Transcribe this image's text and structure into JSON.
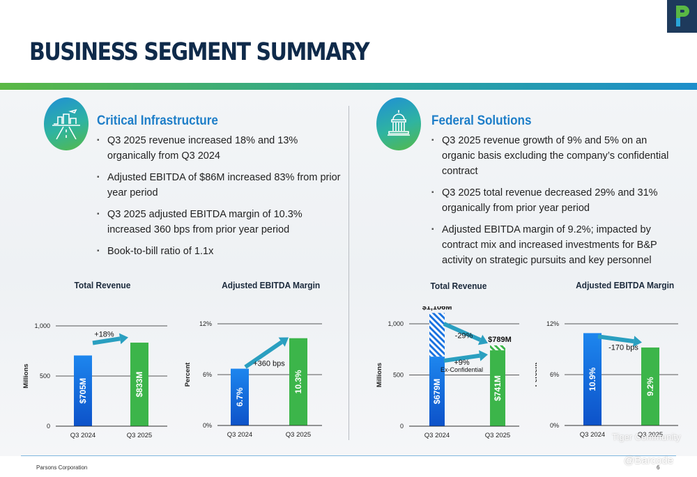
{
  "page": {
    "title": "BUSINESS SEGMENT SUMMARY",
    "footer": "Parsons Corporation",
    "page_number": "6"
  },
  "watermark": {
    "community": "Tiger Community",
    "handle": "@Barcode"
  },
  "segments": [
    {
      "title": "Critical Infrastructure",
      "icon": "city-infrastructure-icon",
      "bullets": [
        "Q3 2025 revenue increased 18% and 13% organically from Q3 2024",
        "Adjusted EBITDA of $86M increased 83% from prior year period",
        "Q3 2025 adjusted EBITDA margin of 10.3% increased 360 bps from prior year period",
        "Book-to-bill ratio of 1.1x"
      ]
    },
    {
      "title": "Federal Solutions",
      "icon": "capitol-building-icon",
      "bullets": [
        "Q3 2025 revenue growth of 9% and 5% on an organic basis excluding the company’s confidential contract",
        "Q3 2025 total revenue decreased 29% and 31% organically from prior year period",
        "Adjusted EBITDA margin of 9.2%; impacted by contract mix and increased investments for B&P activity on strategic pursuits and key personnel"
      ]
    }
  ],
  "chart_data": [
    {
      "id": "ci-revenue",
      "type": "bar",
      "title": "Total Revenue",
      "ylabel": "Millions",
      "categories": [
        "Q3 2024",
        "Q3 2025"
      ],
      "values": [
        705,
        833
      ],
      "bar_labels": [
        "$705M",
        "$833M"
      ],
      "ylim": [
        0,
        1000
      ],
      "yticks": [
        0,
        500,
        1000
      ],
      "ytick_labels": [
        "0",
        "500",
        "1,000"
      ],
      "annotation": "+18%",
      "colors": [
        "#1a73e0",
        "#3cb54a"
      ]
    },
    {
      "id": "ci-margin",
      "type": "bar",
      "title": "Adjusted EBITDA Margin",
      "ylabel": "Percent",
      "categories": [
        "Q3 2024",
        "Q3 2025"
      ],
      "values": [
        6.7,
        10.3
      ],
      "bar_labels": [
        "6.7%",
        "10.3%"
      ],
      "ylim": [
        0,
        12
      ],
      "yticks": [
        0,
        6,
        12
      ],
      "ytick_labels": [
        "0%",
        "6%",
        "12%"
      ],
      "annotation": "+360 bps",
      "colors": [
        "#1a73e0",
        "#3cb54a"
      ]
    },
    {
      "id": "fs-revenue",
      "type": "bar",
      "title": "Total Revenue",
      "ylabel": "Millions",
      "categories": [
        "Q3 2024",
        "Q3 2025"
      ],
      "values": [
        679,
        741
      ],
      "stacked_top": [
        1106,
        789
      ],
      "top_labels": [
        "$1,106M",
        "$789M"
      ],
      "bar_labels": [
        "$679M",
        "$741M"
      ],
      "ylim": [
        0,
        1000
      ],
      "yticks": [
        0,
        500,
        1000
      ],
      "ytick_labels": [
        "0",
        "500",
        "1,000"
      ],
      "annotation": "-29%",
      "annotation2": "+9%",
      "annotation2_sub": "Ex-Confidential",
      "colors": [
        "#1a73e0",
        "#3cb54a"
      ]
    },
    {
      "id": "fs-margin",
      "type": "bar",
      "title": "Adjusted EBITDA Margin",
      "ylabel": "Percent",
      "categories": [
        "Q3 2024",
        "Q3 2025"
      ],
      "values": [
        10.9,
        9.2
      ],
      "bar_labels": [
        "10.9%",
        "9.2%"
      ],
      "ylim": [
        0,
        12
      ],
      "yticks": [
        0,
        6,
        12
      ],
      "ytick_labels": [
        "0%",
        "6%",
        "12%"
      ],
      "annotation": "-170 bps",
      "colors": [
        "#1a73e0",
        "#3cb54a"
      ]
    }
  ]
}
